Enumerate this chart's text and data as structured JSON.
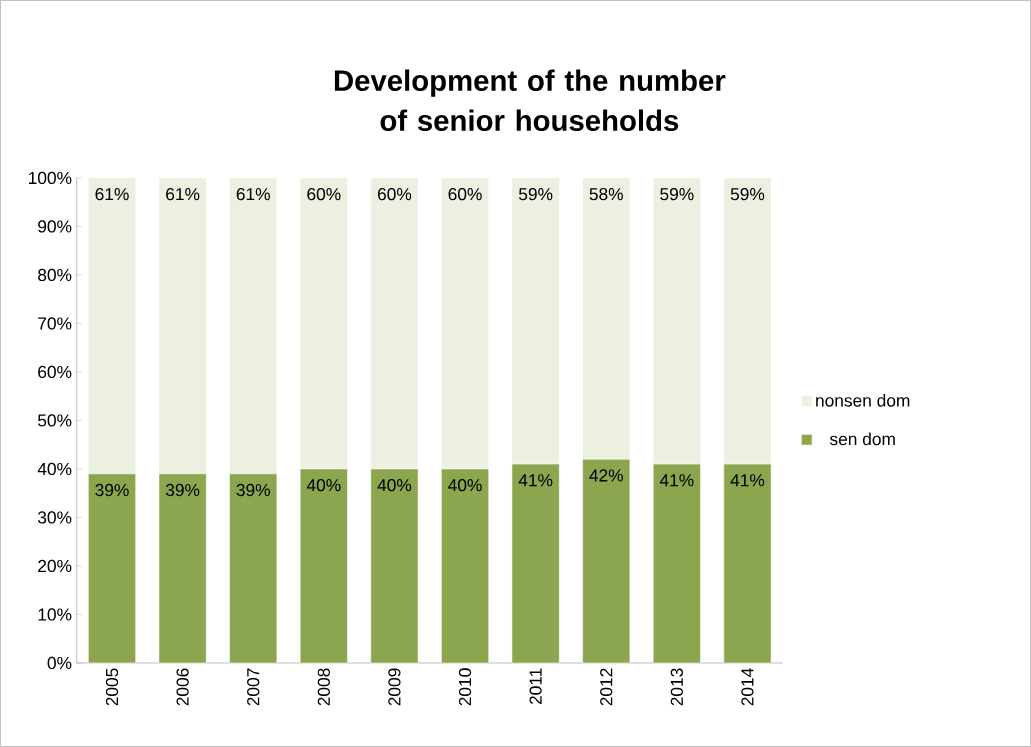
{
  "chart_data": {
    "type": "bar",
    "title": "Development of the number of senior households",
    "stacked": true,
    "categories": [
      "2005",
      "2006",
      "2007",
      "2008",
      "2009",
      "2010",
      "2011",
      "2012",
      "2013",
      "2014"
    ],
    "series": [
      {
        "name": "sen dom",
        "color": "#8ba64f",
        "values": [
          39,
          39,
          39,
          40,
          40,
          40,
          41,
          42,
          41,
          41
        ],
        "value_labels": [
          "39%",
          "39%",
          "39%",
          "40%",
          "40%",
          "40%",
          "41%",
          "42%",
          "41%",
          "41%"
        ]
      },
      {
        "name": "nonsen dom",
        "color": "#ebf0e0",
        "values": [
          61,
          61,
          61,
          60,
          60,
          60,
          59,
          58,
          59,
          59
        ],
        "value_labels": [
          "61%",
          "61%",
          "61%",
          "60%",
          "60%",
          "60%",
          "59%",
          "58%",
          "59%",
          "59%"
        ]
      }
    ],
    "ylim": [
      0,
      100
    ],
    "yticks": [
      {
        "value": 0,
        "label": "0%"
      },
      {
        "value": 10,
        "label": "10%"
      },
      {
        "value": 20,
        "label": "20%"
      },
      {
        "value": 30,
        "label": "30%"
      },
      {
        "value": 40,
        "label": "40%"
      },
      {
        "value": 50,
        "label": "50%"
      },
      {
        "value": 60,
        "label": "60%"
      },
      {
        "value": 70,
        "label": "70%"
      },
      {
        "value": 80,
        "label": "80%"
      },
      {
        "value": 90,
        "label": "90%"
      },
      {
        "value": 100,
        "label": "100%"
      }
    ],
    "grid": false,
    "legend": "right"
  }
}
